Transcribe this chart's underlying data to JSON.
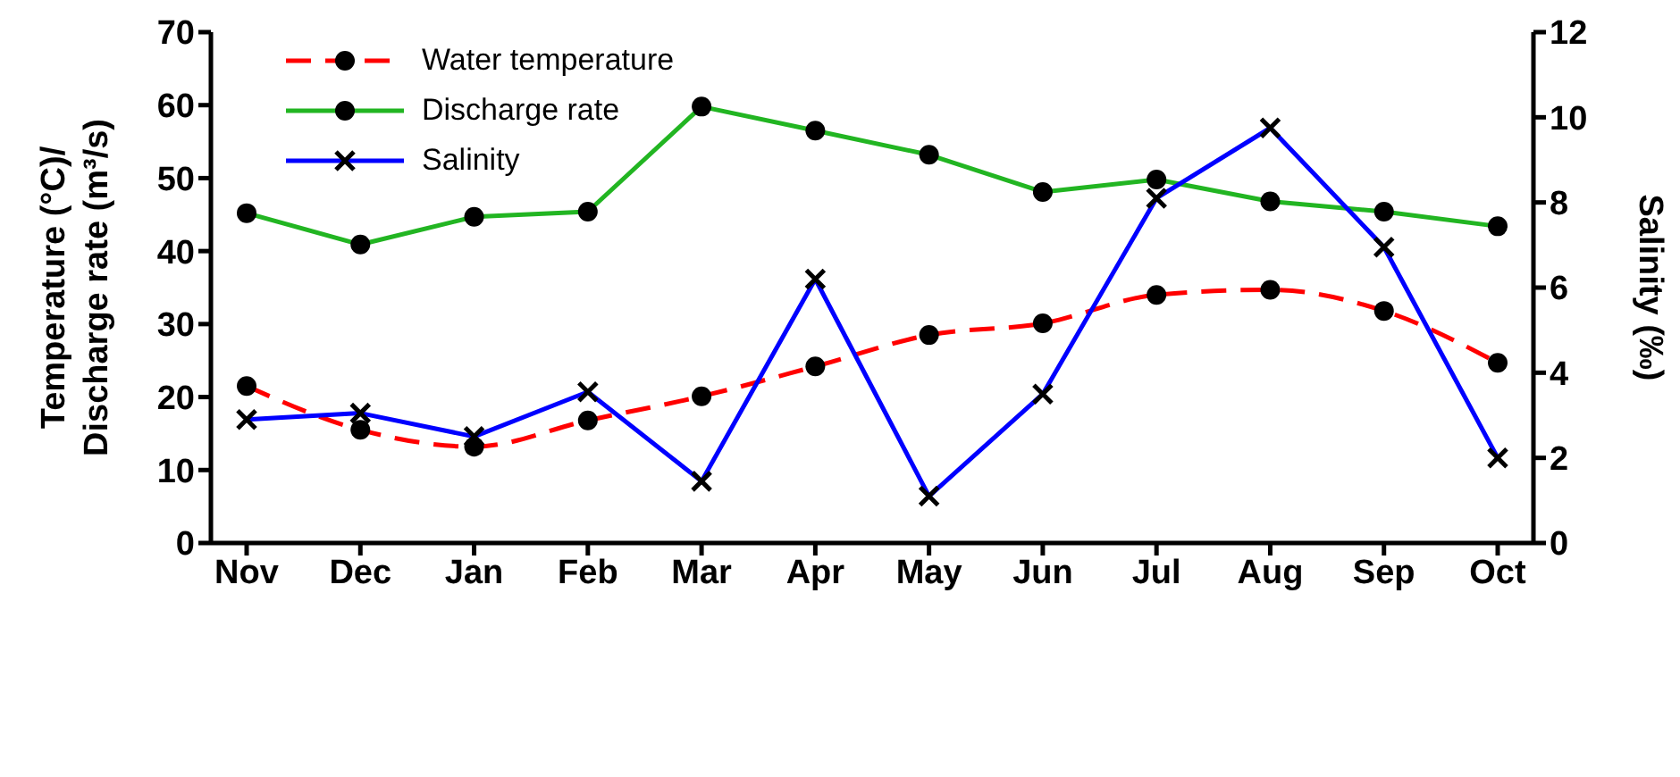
{
  "chart_data": {
    "type": "line",
    "ylabel": "Temperature (°C)/ Discharge rate (m³/s)",
    "y2label": "Salinity (‰)",
    "categories": [
      "Nov",
      "Dec",
      "Jan",
      "Feb",
      "Mar",
      "Apr",
      "May",
      "Jun",
      "Jul",
      "Aug",
      "Sep",
      "Oct"
    ],
    "series": [
      {
        "name": "Water temperature",
        "color": "#ff0000",
        "line_style": "dashed",
        "marker": "circle",
        "values": [
          21.5,
          15.5,
          13.2,
          16.8,
          20.1,
          24.2,
          28.5,
          30.1,
          34.0,
          34.7,
          31.8,
          24.7
        ]
      },
      {
        "name": "Discharge rate",
        "color": "#22b522",
        "line_style": "solid",
        "marker": "circle",
        "values": [
          45.2,
          40.9,
          44.7,
          45.4,
          59.8,
          56.5,
          53.2,
          48.1,
          49.8,
          46.8,
          45.4,
          43.4
        ]
      },
      {
        "name": "Salinity",
        "color": "#0000ff",
        "line_style": "solid",
        "marker": "cross",
        "axis": "y2",
        "values": [
          2.9,
          3.05,
          2.5,
          3.55,
          1.45,
          6.2,
          1.1,
          3.5,
          8.1,
          9.75,
          6.95,
          2.0
        ]
      }
    ],
    "ylim": [
      0,
      70
    ],
    "yticks": [
      0,
      10,
      20,
      30,
      40,
      50,
      60,
      70
    ],
    "y2lim": [
      0,
      12
    ],
    "y2ticks": [
      0,
      2,
      4,
      6,
      8,
      10,
      12
    ],
    "grid": false,
    "legend": "top left"
  }
}
